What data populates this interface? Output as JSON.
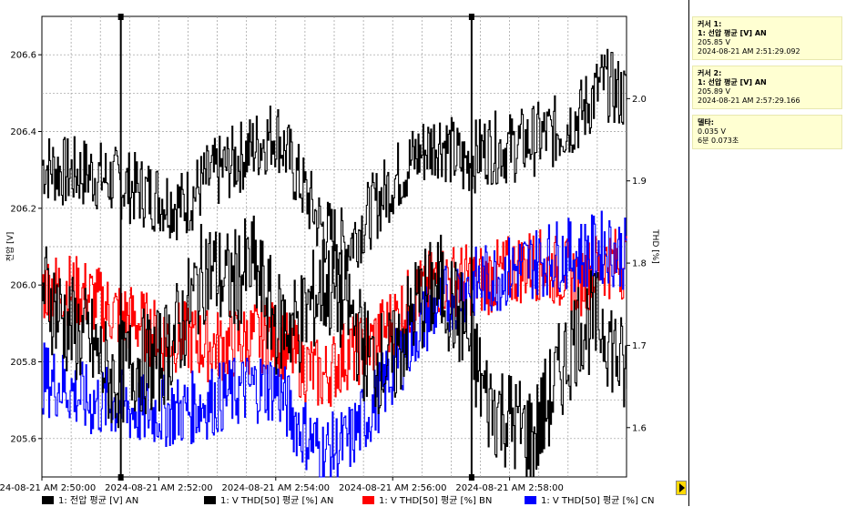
{
  "chart_data": {
    "type": "line",
    "left_axis": {
      "label": "전압 [V]",
      "ylim": [
        205.5,
        206.7
      ],
      "ticks": [
        "205.6",
        "205.8",
        "206.0",
        "206.2",
        "206.4",
        "206.6"
      ],
      "tick_values": [
        205.6,
        205.8,
        206.0,
        206.2,
        206.4,
        206.6
      ]
    },
    "right_axis": {
      "label": "THD [%]",
      "ylim": [
        1.54,
        2.1
      ],
      "ticks": [
        "1.6",
        "1.7",
        "1.8",
        "1.9",
        "2.0"
      ],
      "tick_values": [
        1.6,
        1.7,
        1.8,
        1.9,
        2.0
      ]
    },
    "x_ticks": [
      "2024-08-21 AM 2:50:00",
      "2024-08-21 AM 2:52:00",
      "2024-08-21 AM 2:54:00",
      "2024-08-21 AM 2:56:00",
      "2024-08-21 AM 2:58:00"
    ],
    "x_tick_minutes": [
      50,
      52,
      54,
      56,
      58
    ],
    "x_range_minutes": [
      50,
      60
    ],
    "grid": true,
    "cursors": [
      {
        "label": "커서 1",
        "x_minutes": 51.35
      },
      {
        "label": "커서 2",
        "x_minutes": 57.35
      }
    ],
    "series": [
      {
        "name": "1: 전압 평균 [V] AN",
        "color": "#000000",
        "axis": "left",
        "x": [
          50.0,
          50.4,
          50.8,
          51.2,
          51.6,
          52.0,
          52.4,
          52.8,
          53.2,
          53.6,
          54.0,
          54.4,
          54.8,
          55.2,
          55.6,
          56.0,
          56.4,
          56.8,
          57.2,
          57.6,
          58.0,
          58.4,
          58.8,
          59.2,
          59.6,
          60.0
        ],
        "values": [
          206.0,
          205.9,
          205.85,
          205.75,
          205.8,
          205.8,
          205.9,
          206.05,
          206.0,
          206.05,
          205.9,
          205.9,
          206.0,
          205.95,
          205.8,
          205.8,
          205.95,
          206.0,
          205.9,
          205.7,
          205.65,
          205.6,
          205.75,
          205.9,
          205.9,
          205.75
        ]
      },
      {
        "name": "1: V THD[50] 평균 [%] AN",
        "color": "#000000",
        "axis": "right",
        "x": [
          50.0,
          50.4,
          50.8,
          51.2,
          51.6,
          52.0,
          52.4,
          52.8,
          53.2,
          53.6,
          54.0,
          54.4,
          54.8,
          55.2,
          55.6,
          56.0,
          56.4,
          56.8,
          57.2,
          57.6,
          58.0,
          58.4,
          58.8,
          59.2,
          59.6,
          60.0
        ],
        "values": [
          1.92,
          1.91,
          1.91,
          1.9,
          1.89,
          1.88,
          1.87,
          1.9,
          1.92,
          1.94,
          1.96,
          1.9,
          1.84,
          1.82,
          1.86,
          1.9,
          1.93,
          1.95,
          1.92,
          1.94,
          1.94,
          1.95,
          1.96,
          1.98,
          2.02,
          2.0
        ]
      },
      {
        "name": "1: V THD[50] 평균 [%] BN",
        "color": "#ff0000",
        "axis": "right",
        "x": [
          50.0,
          50.4,
          50.8,
          51.2,
          51.6,
          52.0,
          52.4,
          52.8,
          53.2,
          53.6,
          54.0,
          54.4,
          54.8,
          55.2,
          55.6,
          56.0,
          56.4,
          56.8,
          57.2,
          57.6,
          58.0,
          58.4,
          58.8,
          59.2,
          59.6,
          60.0
        ],
        "values": [
          1.77,
          1.77,
          1.76,
          1.74,
          1.73,
          1.71,
          1.71,
          1.7,
          1.7,
          1.71,
          1.71,
          1.68,
          1.66,
          1.69,
          1.7,
          1.73,
          1.76,
          1.78,
          1.78,
          1.78,
          1.79,
          1.8,
          1.79,
          1.78,
          1.8,
          1.8
        ]
      },
      {
        "name": "1: V THD[50] 평균 [%] CN",
        "color": "#0000ff",
        "axis": "right",
        "x": [
          50.0,
          50.4,
          50.8,
          51.2,
          51.6,
          52.0,
          52.4,
          52.8,
          53.2,
          53.6,
          54.0,
          54.4,
          54.8,
          55.2,
          55.6,
          56.0,
          56.4,
          56.8,
          57.2,
          57.6,
          58.0,
          58.4,
          58.8,
          59.2,
          59.6,
          60.0
        ],
        "values": [
          1.66,
          1.65,
          1.63,
          1.63,
          1.62,
          1.62,
          1.62,
          1.63,
          1.64,
          1.65,
          1.65,
          1.6,
          1.57,
          1.58,
          1.62,
          1.67,
          1.72,
          1.75,
          1.77,
          1.78,
          1.79,
          1.8,
          1.81,
          1.81,
          1.82,
          1.81
        ]
      }
    ]
  },
  "side_panel": {
    "cursor1": {
      "title": "커서 1:",
      "series": "1: 선압 평균 [V] AN",
      "value": "205.85 V",
      "time": "2024-08-21 AM 2:51:29.092"
    },
    "cursor2": {
      "title": "커서 2:",
      "series": "1: 선압 평균 [V] AN",
      "value": "205.89 V",
      "time": "2024-08-21 AM 2:57:29.166"
    },
    "delta": {
      "title": "델타:",
      "value": "0.035 V",
      "duration": "6분 0.073초"
    }
  }
}
